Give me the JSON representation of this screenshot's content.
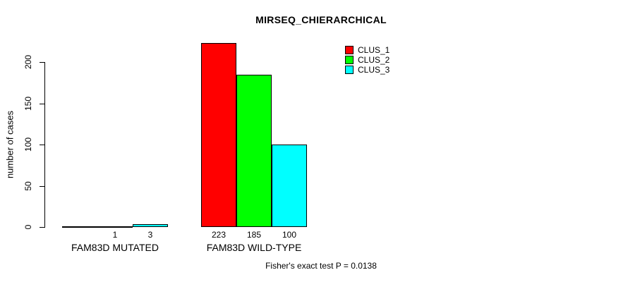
{
  "chart_data": {
    "type": "bar",
    "title": "MIRSEQ_CHIERARCHICAL",
    "ylabel": "number of cases",
    "xlabel": "",
    "categories": [
      "FAM83D MUTATED",
      "FAM83D WILD-TYPE"
    ],
    "series": [
      {
        "name": "CLUS_1",
        "color": "#ff0000",
        "values": [
          0,
          223
        ]
      },
      {
        "name": "CLUS_2",
        "color": "#00ff00",
        "values": [
          1,
          185
        ]
      },
      {
        "name": "CLUS_3",
        "color": "#00ffff",
        "values": [
          3,
          100
        ]
      }
    ],
    "bar_value_labels": [
      [
        "",
        "1",
        "3"
      ],
      [
        "223",
        "185",
        "100"
      ]
    ],
    "yticks": [
      0,
      50,
      100,
      150,
      200
    ],
    "ylim": [
      0,
      234
    ],
    "grid": false,
    "bar_border_color": "#000000",
    "legend": {
      "position": "top-right",
      "entries": [
        {
          "label": "CLUS_1",
          "color": "#ff0000"
        },
        {
          "label": "CLUS_2",
          "color": "#00ff00"
        },
        {
          "label": "CLUS_3",
          "color": "#00ffff"
        }
      ]
    },
    "annotation": "Fisher's exact test P = 0.0138"
  }
}
